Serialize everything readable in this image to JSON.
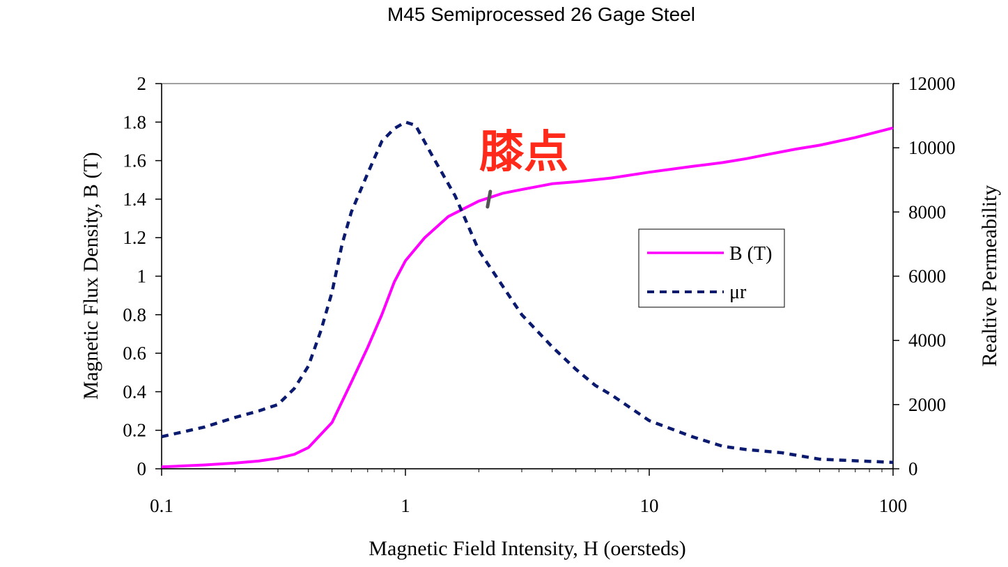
{
  "chart_data": {
    "type": "line",
    "title": "M45 Semiprocessed 26 Gage Steel",
    "xlabel": "Magnetic Field Intensity, H (oersteds)",
    "ylabel": "Magnetic Flux Density, B (T)",
    "y2label": "Realtive Permeability",
    "xscale": "log",
    "xlim": [
      0.1,
      100
    ],
    "ylim": [
      0,
      2
    ],
    "y2lim": [
      0,
      12000
    ],
    "x_ticks": [
      "0.1",
      "1",
      "10",
      "100"
    ],
    "y_ticks": [
      "0",
      "0.2",
      "0.4",
      "0.6",
      "0.8",
      "1",
      "1.2",
      "1.4",
      "1.6",
      "1.8",
      "2"
    ],
    "y2_ticks": [
      "0",
      "2000",
      "4000",
      "6000",
      "8000",
      "10000",
      "12000"
    ],
    "legend_position": "center-right",
    "annotation": {
      "text": "膝点",
      "x": 2.2,
      "y": 1.4
    },
    "series": [
      {
        "name": "B (T)",
        "axis": "left",
        "color": "#ff00ff",
        "style": "solid",
        "x": [
          0.1,
          0.15,
          0.2,
          0.25,
          0.3,
          0.35,
          0.4,
          0.5,
          0.6,
          0.7,
          0.8,
          0.9,
          1.0,
          1.2,
          1.5,
          2.0,
          2.5,
          3.0,
          4.0,
          5.0,
          7.0,
          10,
          15,
          20,
          25,
          30,
          40,
          50,
          70,
          100
        ],
        "values": [
          0.01,
          0.02,
          0.03,
          0.04,
          0.055,
          0.075,
          0.11,
          0.24,
          0.45,
          0.63,
          0.8,
          0.97,
          1.08,
          1.2,
          1.31,
          1.39,
          1.43,
          1.45,
          1.48,
          1.49,
          1.51,
          1.54,
          1.57,
          1.59,
          1.61,
          1.63,
          1.66,
          1.68,
          1.72,
          1.77
        ]
      },
      {
        "name": "μr",
        "axis": "right",
        "color": "#0a1a6e",
        "style": "dashed",
        "x": [
          0.1,
          0.15,
          0.2,
          0.25,
          0.3,
          0.35,
          0.4,
          0.45,
          0.5,
          0.55,
          0.6,
          0.7,
          0.8,
          0.9,
          1.0,
          1.1,
          1.3,
          1.6,
          2.0,
          2.5,
          3.0,
          4.0,
          5.0,
          6.0,
          7.0,
          10,
          15,
          20,
          25,
          35,
          50,
          70,
          100
        ],
        "values": [
          1000,
          1300,
          1600,
          1800,
          2000,
          2500,
          3200,
          4300,
          5500,
          7000,
          8000,
          9200,
          10200,
          10600,
          10800,
          10700,
          9700,
          8500,
          6800,
          5700,
          4800,
          3800,
          3100,
          2600,
          2300,
          1500,
          1000,
          700,
          600,
          500,
          300,
          250,
          200
        ]
      }
    ]
  }
}
